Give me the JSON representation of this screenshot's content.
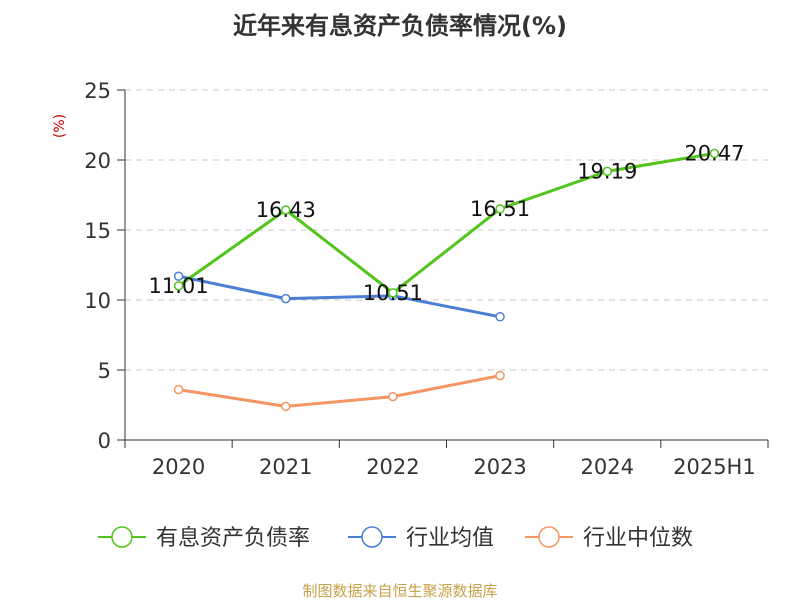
{
  "chart_data": {
    "type": "line",
    "title": "近年来有息资产负债率情况(%)",
    "ylabel": "(%)",
    "xlabel": "",
    "categories": [
      "2020",
      "2021",
      "2022",
      "2023",
      "2024",
      "2025H1"
    ],
    "ylim": [
      0,
      25
    ],
    "yticks": [
      0,
      5,
      10,
      15,
      20,
      25
    ],
    "grid": true,
    "legend_position": "bottom",
    "series": [
      {
        "name": "有息资产负债率",
        "color": "#52c41a",
        "values": [
          11.01,
          16.43,
          10.51,
          16.51,
          19.19,
          20.47
        ],
        "labels": [
          "11.01",
          "16.43",
          "10.51",
          "16.51",
          "19.19",
          "20.47"
        ]
      },
      {
        "name": "行业均值",
        "color": "#4a7fd6",
        "values": [
          11.7,
          10.1,
          10.3,
          8.8,
          null,
          null
        ]
      },
      {
        "name": "行业中位数",
        "color": "#f59563",
        "values": [
          3.6,
          2.4,
          3.1,
          4.6,
          null,
          null
        ]
      }
    ]
  },
  "footer": "制图数据来自恒生聚源数据库"
}
